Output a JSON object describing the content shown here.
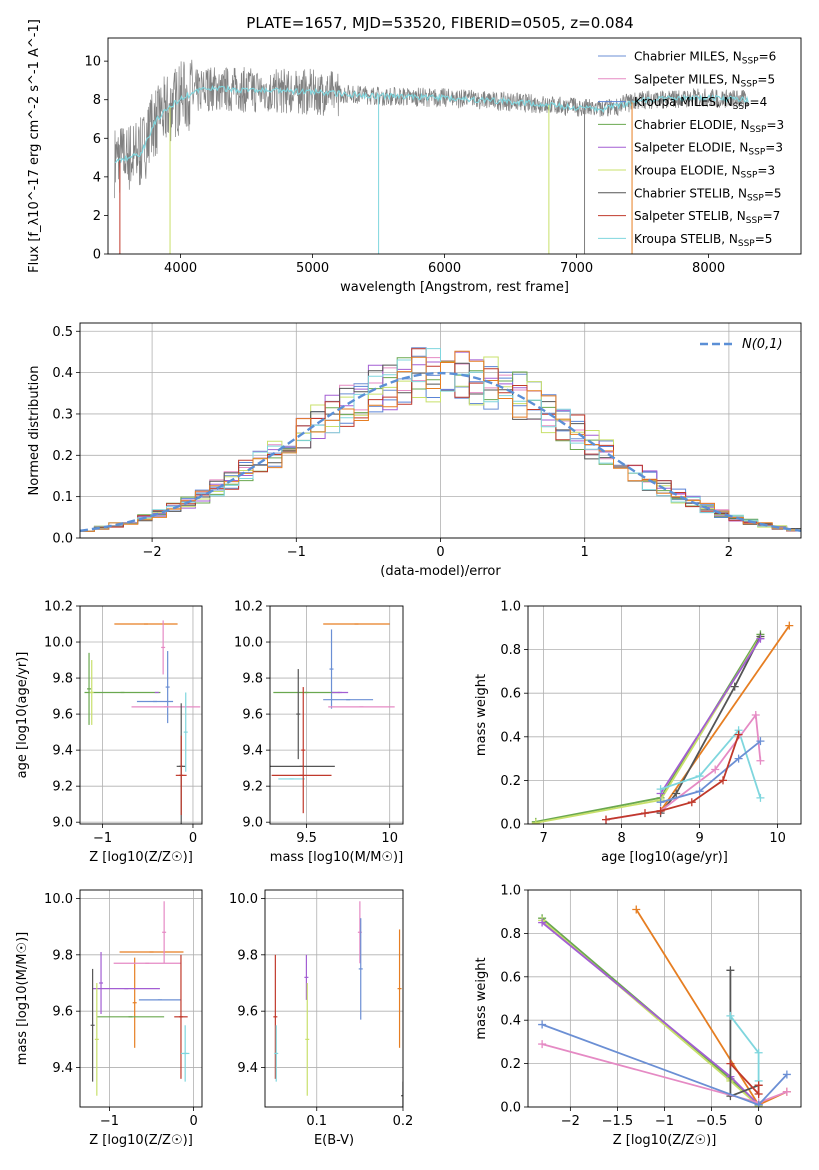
{
  "figure": {
    "title": "PLATE=1657, MJD=53520, FIBERID=0505, z=0.084"
  },
  "colors": {
    "chabrier_miles": "#6b8fd4",
    "salpeter_miles": "#e58ac4",
    "kroupa_miles": "#5a84d6",
    "chabrier_elodie": "#6aa84f",
    "salpeter_elodie": "#a35ed3",
    "kroupa_elodie": "#c8e06b",
    "chabrier_stelib": "#555555",
    "salpeter_stelib": "#c0392b",
    "kroupa_stelib": "#7fd6de",
    "orange": "#e67e22",
    "data": "#808080",
    "normal": "#5b8fd6"
  },
  "chart_data": [
    {
      "id": "spectrum",
      "type": "line",
      "xlabel": "wavelength [Angstrom, rest frame]",
      "ylabel": "Flux [f_λ10^-17 erg cm^-2 s^-1 A^-1]",
      "xlim": [
        3450,
        8700
      ],
      "ylim": [
        0,
        11.2
      ],
      "xticks": [
        4000,
        5000,
        6000,
        7000,
        8000
      ],
      "yticks": [
        0,
        2,
        4,
        6,
        8,
        10
      ],
      "legend_position": "top-right",
      "legend": [
        "Chabrier MILES, N_SSP=6",
        "Salpeter MILES, N_SSP=5",
        "Kroupa MILES, N_SSP=4",
        "Chabrier ELODIE, N_SSP=3",
        "Salpeter ELODIE, N_SSP=3",
        "Kroupa ELODIE, N_SSP=3",
        "Chabrier STELIB, N_SSP=5",
        "Salpeter STELIB, N_SSP=7",
        "Kroupa STELIB, N_SSP=5"
      ],
      "continuum": {
        "x": [
          3500,
          3700,
          3800,
          3900,
          4000,
          4200,
          4500,
          5000,
          5500,
          6000,
          6500,
          7000,
          7200,
          7500,
          8000,
          8300
        ],
        "y": [
          4.8,
          5.2,
          6.8,
          7.5,
          8.1,
          8.6,
          8.5,
          8.4,
          8.2,
          8.1,
          7.9,
          7.6,
          7.5,
          8.0,
          8.1,
          8.0
        ]
      }
    },
    {
      "id": "residuals",
      "type": "histogram",
      "xlabel": "(data-model)/error",
      "ylabel": "Normed distribution",
      "xlim": [
        -2.5,
        2.5
      ],
      "ylim": [
        0,
        0.52
      ],
      "xticks": [
        -2,
        -1,
        0,
        1,
        2
      ],
      "yticks": [
        0.0,
        0.1,
        0.2,
        0.3,
        0.4,
        0.5
      ],
      "legend": [
        "N(0,1)"
      ],
      "legend_position": "top-right",
      "bin_width": 0.1,
      "bin_start": -2.5
    },
    {
      "id": "age_vs_Z",
      "type": "scatter",
      "xlabel": "Z [log10(Z/Z☉)]",
      "ylabel": "age  [log10(age/yr)]",
      "xlim": [
        -1.25,
        0.1
      ],
      "ylim": [
        8.99,
        10.2
      ],
      "xticks": [
        -1,
        0
      ],
      "yticks": [
        9.0,
        9.2,
        9.4,
        9.6,
        9.8,
        10.0,
        10.2
      ],
      "points": [
        {
          "x": -0.52,
          "y": 10.1,
          "xerr": 0.35,
          "yerr": 0.0,
          "c": "orange"
        },
        {
          "x": -0.33,
          "y": 9.97,
          "xerr": 0.0,
          "yerr": 0.15,
          "c": "salpeter_miles"
        },
        {
          "x": -0.28,
          "y": 9.75,
          "xerr": 0.0,
          "yerr": 0.2,
          "c": "chabrier_miles"
        },
        {
          "x": -0.3,
          "y": 9.64,
          "xerr": 0.38,
          "yerr": 0.0,
          "c": "salpeter_miles"
        },
        {
          "x": -0.42,
          "y": 9.67,
          "xerr": 0.2,
          "yerr": 0.0,
          "c": "chabrier_miles"
        },
        {
          "x": -0.78,
          "y": 9.72,
          "xerr": 0.42,
          "yerr": 0.0,
          "c": "chabrier_elodie"
        },
        {
          "x": -1.15,
          "y": 9.74,
          "xerr": 0.0,
          "yerr": 0.2,
          "c": "chabrier_elodie"
        },
        {
          "x": -1.12,
          "y": 9.72,
          "xerr": 0.0,
          "yerr": 0.18,
          "c": "kroupa_elodie"
        },
        {
          "x": -0.4,
          "y": 9.72,
          "xerr": 0.0,
          "yerr": 0.0,
          "c": "salpeter_elodie"
        },
        {
          "x": -0.13,
          "y": 9.31,
          "xerr": 0.05,
          "yerr": 0.35,
          "c": "chabrier_stelib"
        },
        {
          "x": -0.13,
          "y": 9.26,
          "xerr": 0.06,
          "yerr": 0.22,
          "c": "salpeter_stelib"
        },
        {
          "x": -0.08,
          "y": 9.5,
          "xerr": 0.0,
          "yerr": 0.22,
          "c": "kroupa_stelib"
        }
      ]
    },
    {
      "id": "age_vs_mass",
      "type": "scatter",
      "xlabel": "mass [log10(M/M☉)]",
      "ylabel": "",
      "xlim": [
        9.28,
        10.08
      ],
      "ylim": [
        8.99,
        10.2
      ],
      "xticks": [
        9.5,
        10.0
      ],
      "yticks": [
        9.0,
        9.2,
        9.4,
        9.6,
        9.8,
        10.0,
        10.2
      ],
      "points": [
        {
          "x": 9.8,
          "y": 10.1,
          "xerr": 0.2,
          "yerr": 0.0,
          "c": "orange"
        },
        {
          "x": 9.65,
          "y": 9.85,
          "xerr": 0.0,
          "yerr": 0.22,
          "c": "chabrier_miles"
        },
        {
          "x": 9.83,
          "y": 9.64,
          "xerr": 0.2,
          "yerr": 0.0,
          "c": "salpeter_miles"
        },
        {
          "x": 9.75,
          "y": 9.68,
          "xerr": 0.15,
          "yerr": 0.0,
          "c": "chabrier_miles"
        },
        {
          "x": 9.5,
          "y": 9.72,
          "xerr": 0.2,
          "yerr": 0.0,
          "c": "chabrier_elodie"
        },
        {
          "x": 9.7,
          "y": 9.72,
          "xerr": 0.05,
          "yerr": 0.0,
          "c": "salpeter_elodie"
        },
        {
          "x": 9.45,
          "y": 9.6,
          "xerr": 0.0,
          "yerr": 0.25,
          "c": "chabrier_stelib"
        },
        {
          "x": 9.47,
          "y": 9.31,
          "xerr": 0.2,
          "yerr": 0.0,
          "c": "chabrier_stelib"
        },
        {
          "x": 9.47,
          "y": 9.26,
          "xerr": 0.18,
          "yerr": 0.0,
          "c": "salpeter_stelib"
        },
        {
          "x": 9.41,
          "y": 9.24,
          "xerr": 0.08,
          "yerr": 0.0,
          "c": "kroupa_stelib"
        },
        {
          "x": 9.48,
          "y": 9.4,
          "xerr": 0.0,
          "yerr": 0.35,
          "c": "salpeter_stelib"
        }
      ]
    },
    {
      "id": "massweight_vs_age",
      "type": "line",
      "xlabel": "age  [log10(age/yr)]",
      "ylabel": "mass weight",
      "xlim": [
        6.8,
        10.3
      ],
      "ylim": [
        0,
        1.0
      ],
      "xticks": [
        7,
        8,
        9,
        10
      ],
      "yticks": [
        0.0,
        0.2,
        0.4,
        0.6,
        0.8,
        1.0
      ],
      "series": [
        {
          "c": "orange",
          "x": [
            8.5,
            10.15
          ],
          "y": [
            0.06,
            0.91
          ]
        },
        {
          "c": "chabrier_elodie",
          "x": [
            6.9,
            8.5,
            9.78
          ],
          "y": [
            0.01,
            0.12,
            0.87
          ]
        },
        {
          "c": "kroupa_elodie",
          "x": [
            6.9,
            8.5,
            9.78
          ],
          "y": [
            0.005,
            0.11,
            0.86
          ]
        },
        {
          "c": "chabrier_stelib",
          "x": [
            8.5,
            8.7,
            9.45,
            9.78
          ],
          "y": [
            0.05,
            0.14,
            0.63,
            0.86
          ]
        },
        {
          "c": "salpeter_elodie",
          "x": [
            8.5,
            9.78
          ],
          "y": [
            0.14,
            0.85
          ]
        },
        {
          "c": "kroupa_stelib",
          "x": [
            8.5,
            9.0,
            9.5,
            9.78
          ],
          "y": [
            0.16,
            0.22,
            0.43,
            0.12
          ]
        },
        {
          "c": "salpeter_miles",
          "x": [
            7.8,
            8.5,
            9.2,
            9.72,
            9.78
          ],
          "y": [
            0.02,
            0.06,
            0.25,
            0.5,
            0.29
          ]
        },
        {
          "c": "chabrier_miles",
          "x": [
            8.5,
            9.0,
            9.5,
            9.78
          ],
          "y": [
            0.1,
            0.15,
            0.3,
            0.38
          ]
        },
        {
          "c": "salpeter_stelib",
          "x": [
            7.8,
            8.3,
            8.5,
            8.9,
            9.3,
            9.5
          ],
          "y": [
            0.02,
            0.05,
            0.06,
            0.1,
            0.2,
            0.41
          ]
        }
      ]
    },
    {
      "id": "mass_vs_Z",
      "type": "scatter",
      "xlabel": "Z [log10(Z/Z☉)]",
      "ylabel": "mass [log10(M/M☉)]",
      "xlim": [
        -1.35,
        0.1
      ],
      "ylim": [
        9.26,
        10.03
      ],
      "xticks": [
        -1,
        0
      ],
      "yticks": [
        9.4,
        9.6,
        9.8,
        10.0
      ],
      "points": [
        {
          "x": -0.5,
          "y": 9.81,
          "xerr": 0.38,
          "yerr": 0.0,
          "c": "orange"
        },
        {
          "x": -0.7,
          "y": 9.63,
          "xerr": 0.0,
          "yerr": 0.16,
          "c": "orange"
        },
        {
          "x": -0.35,
          "y": 9.88,
          "xerr": 0.0,
          "yerr": 0.11,
          "c": "salpeter_miles"
        },
        {
          "x": -0.4,
          "y": 9.64,
          "xerr": 0.25,
          "yerr": 0.0,
          "c": "chabrier_miles"
        },
        {
          "x": -0.55,
          "y": 9.77,
          "xerr": 0.4,
          "yerr": 0.0,
          "c": "salpeter_miles"
        },
        {
          "x": -0.8,
          "y": 9.68,
          "xerr": 0.4,
          "yerr": 0.0,
          "c": "salpeter_elodie"
        },
        {
          "x": -1.1,
          "y": 9.7,
          "xerr": 0.0,
          "yerr": 0.11,
          "c": "salpeter_elodie"
        },
        {
          "x": -0.75,
          "y": 9.58,
          "xerr": 0.4,
          "yerr": 0.0,
          "c": "chabrier_elodie"
        },
        {
          "x": -1.2,
          "y": 9.55,
          "xerr": 0.0,
          "yerr": 0.2,
          "c": "chabrier_stelib"
        },
        {
          "x": -1.15,
          "y": 9.5,
          "xerr": 0.0,
          "yerr": 0.2,
          "c": "kroupa_elodie"
        },
        {
          "x": -0.15,
          "y": 9.58,
          "xerr": 0.08,
          "yerr": 0.22,
          "c": "salpeter_stelib"
        },
        {
          "x": -0.1,
          "y": 9.45,
          "xerr": 0.05,
          "yerr": 0.1,
          "c": "kroupa_stelib"
        }
      ]
    },
    {
      "id": "mass_vs_EBV",
      "type": "scatter",
      "xlabel": "E(B-V)",
      "ylabel": "",
      "xlim": [
        0.04,
        0.2
      ],
      "ylim": [
        9.26,
        10.03
      ],
      "xticks": [
        0.1,
        0.2
      ],
      "yticks": [
        9.4,
        9.6,
        9.8,
        10.0
      ],
      "points": [
        {
          "x": 0.052,
          "y": 9.58,
          "xerr": 0.0,
          "yerr": 0.22,
          "c": "salpeter_stelib"
        },
        {
          "x": 0.053,
          "y": 9.45,
          "xerr": 0.0,
          "yerr": 0.1,
          "c": "kroupa_stelib"
        },
        {
          "x": 0.088,
          "y": 9.72,
          "xerr": 0.0,
          "yerr": 0.08,
          "c": "salpeter_elodie"
        },
        {
          "x": 0.089,
          "y": 9.5,
          "xerr": 0.0,
          "yerr": 0.2,
          "c": "kroupa_elodie"
        },
        {
          "x": 0.15,
          "y": 9.88,
          "xerr": 0.0,
          "yerr": 0.11,
          "c": "salpeter_miles"
        },
        {
          "x": 0.151,
          "y": 9.75,
          "xerr": 0.0,
          "yerr": 0.18,
          "c": "chabrier_miles"
        },
        {
          "x": 0.196,
          "y": 9.68,
          "xerr": 0.0,
          "yerr": 0.21,
          "c": "orange"
        },
        {
          "x": 0.2,
          "y": 9.3,
          "xerr": 0.0,
          "yerr": 0.05,
          "c": "chabrier_stelib"
        }
      ]
    },
    {
      "id": "massweight_vs_Z",
      "type": "line",
      "xlabel": "Z [log10(Z/Z☉)]",
      "ylabel": "mass weight",
      "xlim": [
        -2.45,
        0.45
      ],
      "ylim": [
        0,
        1.0
      ],
      "xticks": [
        -2.0,
        -1.5,
        -1.0,
        -0.5,
        0.0
      ],
      "yticks": [
        0.0,
        0.2,
        0.4,
        0.6,
        0.8,
        1.0
      ],
      "series": [
        {
          "c": "orange",
          "x": [
            -1.3,
            0.0,
            0.3
          ],
          "y": [
            0.91,
            0.01,
            0.07
          ]
        },
        {
          "c": "chabrier_elodie",
          "x": [
            -2.3,
            -0.3,
            0.0
          ],
          "y": [
            0.87,
            0.13,
            0.01
          ]
        },
        {
          "c": "kroupa_elodie",
          "x": [
            -2.3,
            -0.3,
            0.0
          ],
          "y": [
            0.86,
            0.12,
            0.005
          ]
        },
        {
          "c": "salpeter_elodie",
          "x": [
            -2.3,
            -0.3,
            0.0
          ],
          "y": [
            0.85,
            0.14,
            0.01
          ]
        },
        {
          "c": "chabrier_stelib",
          "x": [
            -0.3,
            -0.3,
            0.0
          ],
          "y": [
            0.63,
            0.05,
            0.1
          ]
        },
        {
          "c": "kroupa_stelib",
          "x": [
            -0.3,
            0.0,
            0.0
          ],
          "y": [
            0.42,
            0.25,
            0.12
          ]
        },
        {
          "c": "salpeter_miles",
          "x": [
            -2.3,
            0.0,
            0.3
          ],
          "y": [
            0.29,
            0.02,
            0.07
          ]
        },
        {
          "c": "chabrier_miles",
          "x": [
            -2.3,
            0.0,
            0.3
          ],
          "y": [
            0.38,
            0.01,
            0.15
          ]
        },
        {
          "c": "salpeter_stelib",
          "x": [
            -0.3,
            0.0,
            0.0
          ],
          "y": [
            0.2,
            0.06,
            0.1
          ]
        }
      ]
    }
  ]
}
